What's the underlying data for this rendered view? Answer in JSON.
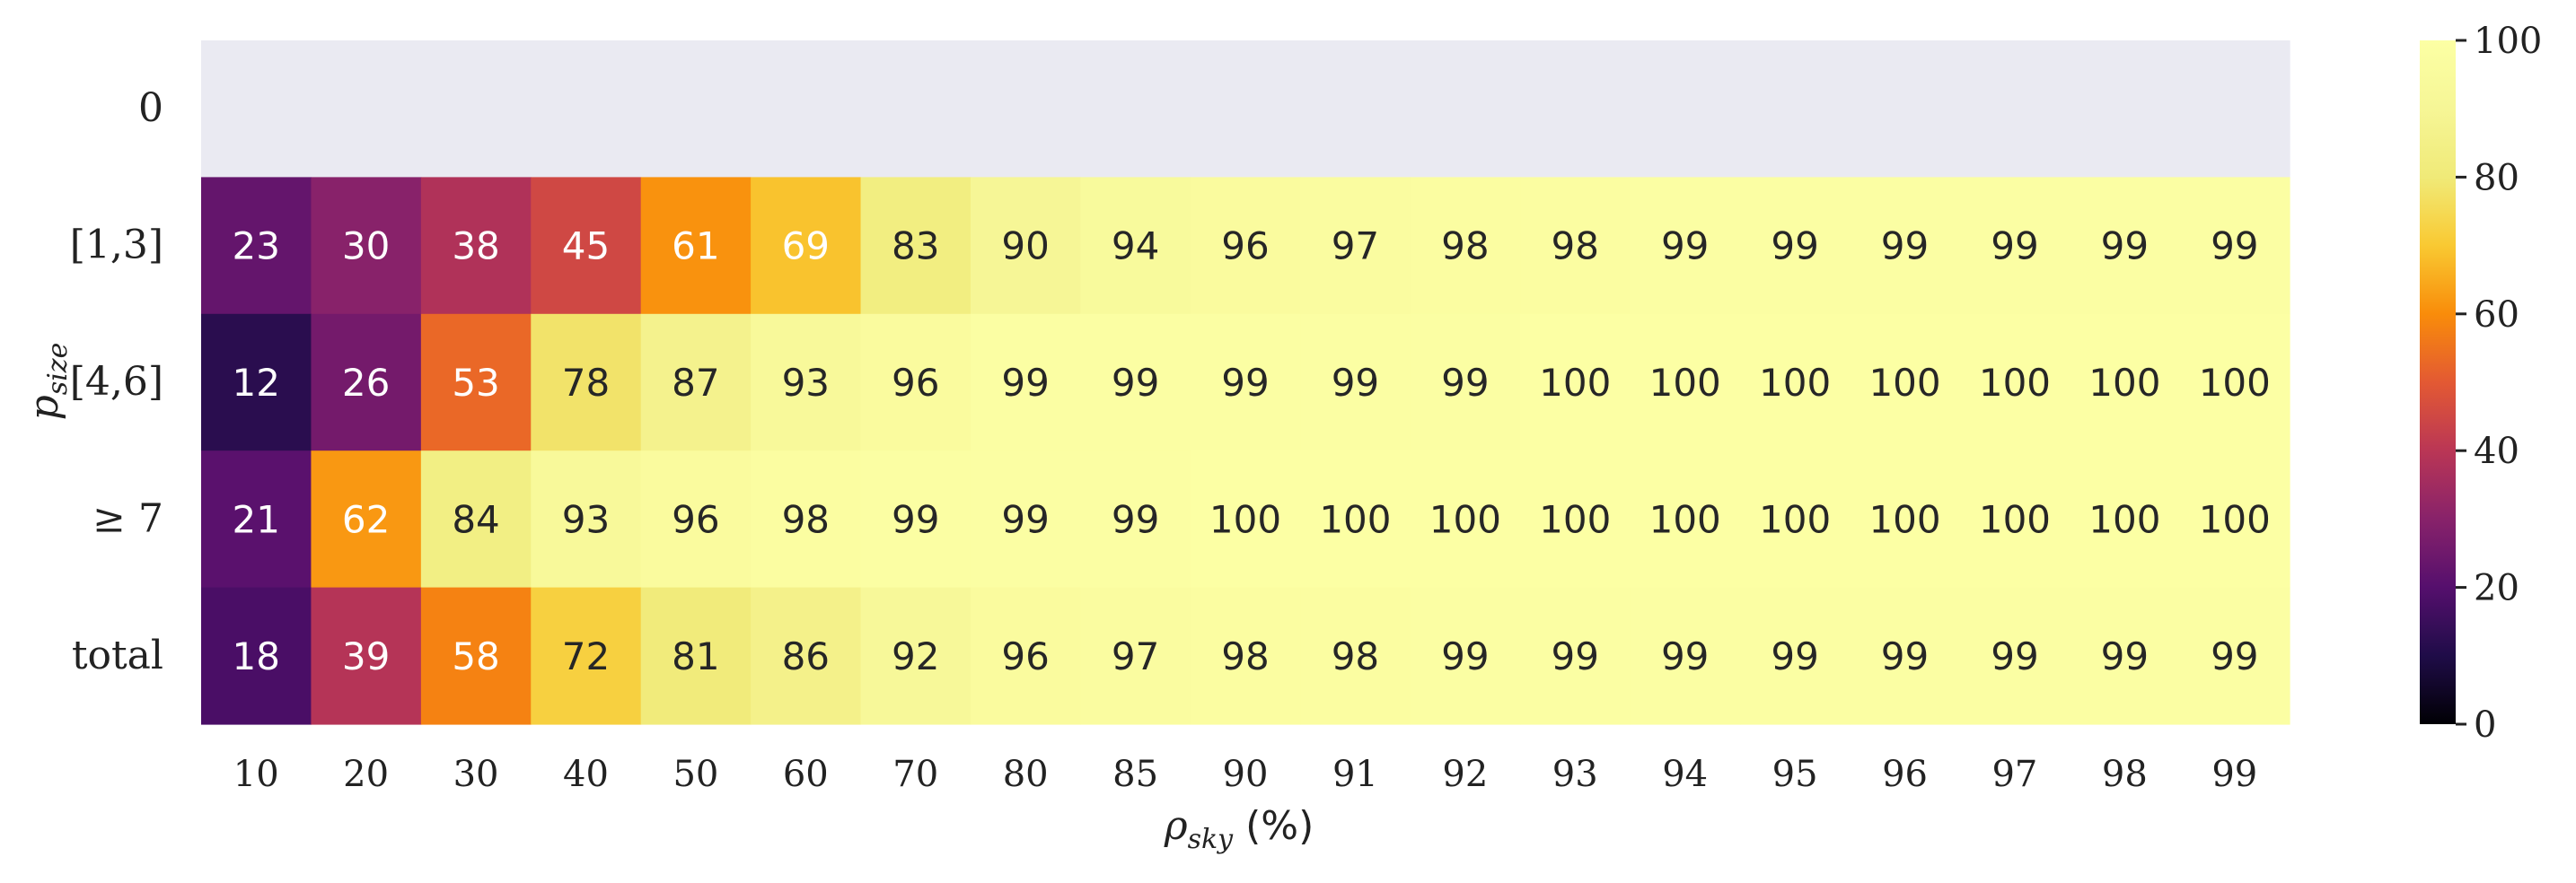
{
  "chart_data": {
    "type": "heatmap",
    "title": "",
    "x_categories": [
      "10",
      "20",
      "30",
      "40",
      "50",
      "60",
      "70",
      "80",
      "85",
      "90",
      "91",
      "92",
      "93",
      "94",
      "95",
      "96",
      "97",
      "98",
      "99"
    ],
    "y_categories": [
      "0",
      "[1,3]",
      "[4,6]",
      "≥ 7",
      "total"
    ],
    "values": [
      [
        null,
        null,
        null,
        null,
        null,
        null,
        null,
        null,
        null,
        null,
        null,
        null,
        null,
        null,
        null,
        null,
        null,
        null,
        null
      ],
      [
        23,
        30,
        38,
        45,
        61,
        69,
        83,
        90,
        94,
        96,
        97,
        98,
        98,
        99,
        99,
        99,
        99,
        99,
        99
      ],
      [
        12,
        26,
        53,
        78,
        87,
        93,
        96,
        99,
        99,
        99,
        99,
        99,
        100,
        100,
        100,
        100,
        100,
        100,
        100
      ],
      [
        21,
        62,
        84,
        93,
        96,
        98,
        99,
        99,
        99,
        100,
        100,
        100,
        100,
        100,
        100,
        100,
        100,
        100,
        100
      ],
      [
        18,
        39,
        58,
        72,
        81,
        86,
        92,
        96,
        97,
        98,
        98,
        99,
        99,
        99,
        99,
        99,
        99,
        99,
        99
      ]
    ],
    "xlabel": {
      "symbol": "ρ",
      "subscript": "sky",
      "unit": "(%)"
    },
    "ylabel": {
      "symbol": "p",
      "subscript": "size"
    },
    "colormap": "inferno",
    "value_range": [
      0,
      100
    ],
    "missing_color": "#eaeaf2",
    "colorbar": {
      "ticks": [
        0,
        20,
        40,
        60,
        80,
        100
      ]
    }
  }
}
